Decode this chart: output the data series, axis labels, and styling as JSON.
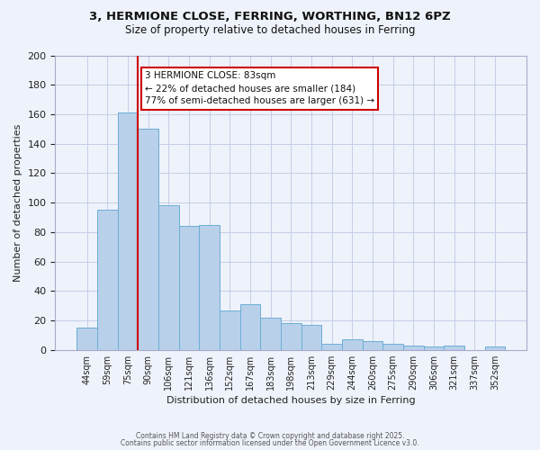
{
  "title1": "3, HERMIONE CLOSE, FERRING, WORTHING, BN12 6PZ",
  "title2": "Size of property relative to detached houses in Ferring",
  "xlabel": "Distribution of detached houses by size in Ferring",
  "ylabel": "Number of detached properties",
  "categories": [
    "44sqm",
    "59sqm",
    "75sqm",
    "90sqm",
    "106sqm",
    "121sqm",
    "136sqm",
    "152sqm",
    "167sqm",
    "183sqm",
    "198sqm",
    "213sqm",
    "229sqm",
    "244sqm",
    "260sqm",
    "275sqm",
    "290sqm",
    "306sqm",
    "321sqm",
    "337sqm",
    "352sqm"
  ],
  "values": [
    15,
    95,
    161,
    150,
    98,
    84,
    85,
    27,
    31,
    22,
    18,
    17,
    4,
    7,
    6,
    4,
    3,
    2,
    3,
    0,
    2
  ],
  "bar_color": "#b8d0ea",
  "bar_edge_color": "#6baed6",
  "vline_color": "#cc0000",
  "vline_pos": 2.5,
  "annotation_text": "3 HERMIONE CLOSE: 83sqm\n← 22% of detached houses are smaller (184)\n77% of semi-detached houses are larger (631) →",
  "annotation_box_color": "#ffffff",
  "annotation_box_edge": "#cc0000",
  "ylim": [
    0,
    200
  ],
  "yticks": [
    0,
    20,
    40,
    60,
    80,
    100,
    120,
    140,
    160,
    180,
    200
  ],
  "footer1": "Contains HM Land Registry data © Crown copyright and database right 2025.",
  "footer2": "Contains public sector information licensed under the Open Government Licence v3.0.",
  "bg_color": "#eef2fa",
  "grid_color": "#c5cde8"
}
